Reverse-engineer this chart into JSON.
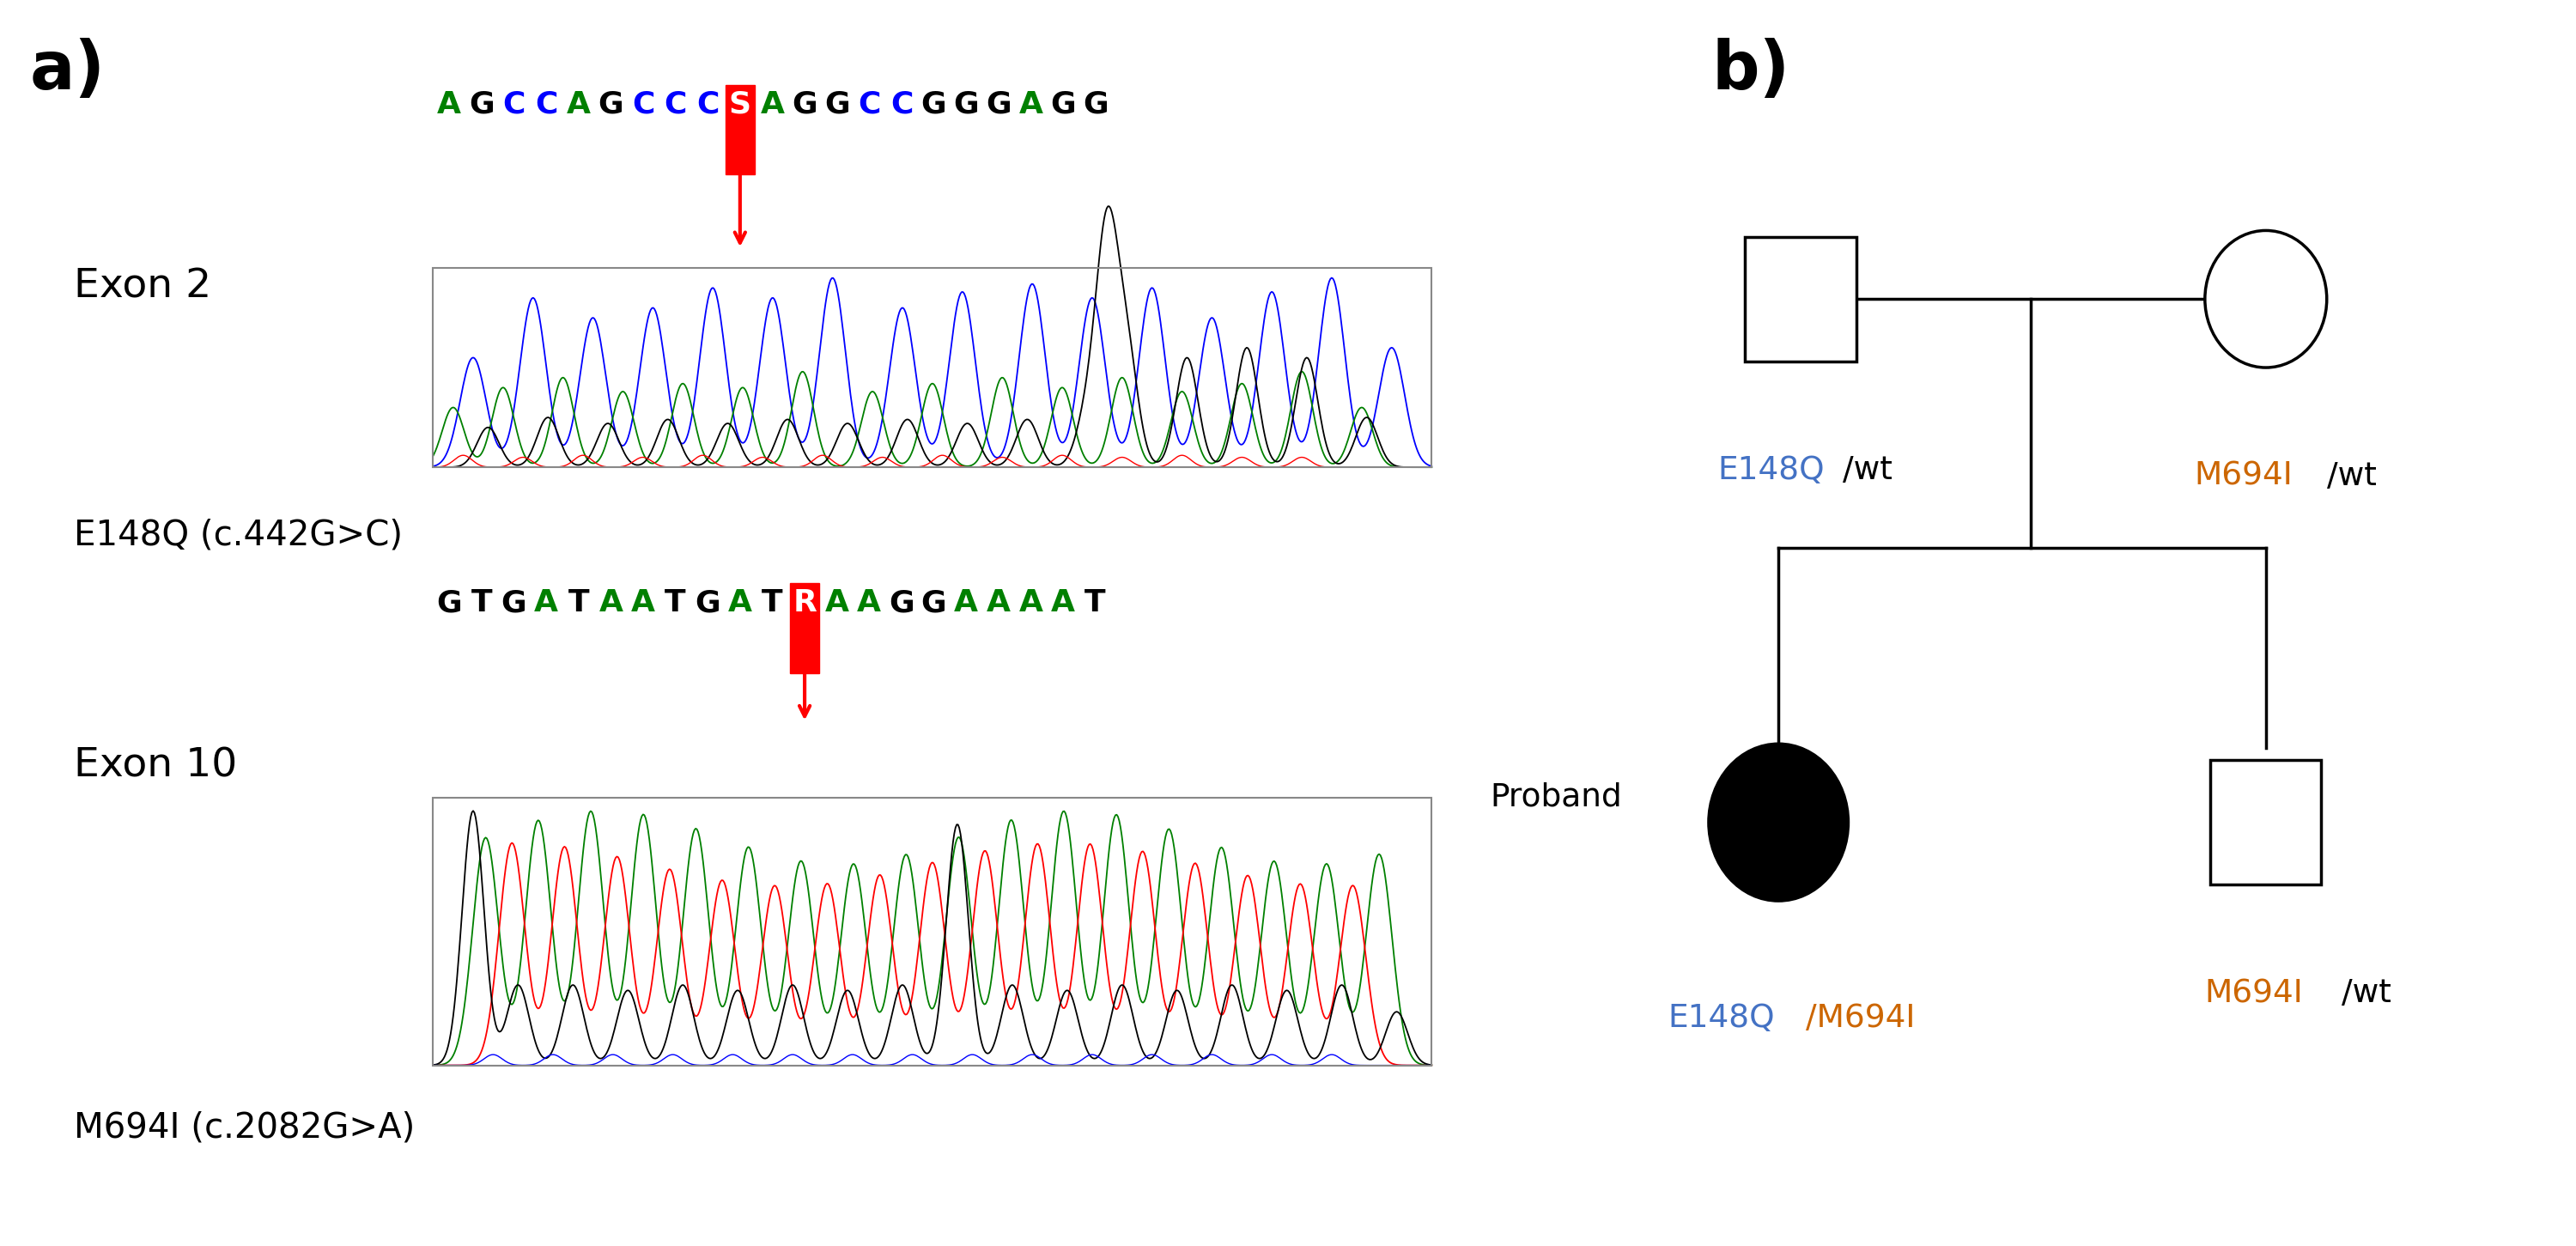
{
  "panel_a_label": "a)",
  "panel_b_label": "b)",
  "exon2_label": "Exon 2",
  "exon10_label": "Exon 10",
  "mutation1_label": "E148Q (c.442G>C)",
  "mutation2_label": "M694I (c.2082G>A)",
  "seq1": {
    "chars": [
      "A",
      "G",
      "C",
      "C",
      "A",
      "G",
      "C",
      "C",
      "C",
      "S",
      "A",
      "G",
      "G",
      "C",
      "C",
      "G",
      "G",
      "G",
      "A",
      "G",
      "G"
    ],
    "colors": [
      "#008000",
      "#000000",
      "#0000FF",
      "#0000FF",
      "#008000",
      "#000000",
      "#0000FF",
      "#0000FF",
      "#0000FF",
      "#FF0000",
      "#008000",
      "#000000",
      "#000000",
      "#0000FF",
      "#0000FF",
      "#000000",
      "#000000",
      "#000000",
      "#008000",
      "#000000",
      "#000000"
    ],
    "highlight_index": 9,
    "highlight_bg": "#FF0000"
  },
  "seq2": {
    "chars": [
      "G",
      "T",
      "G",
      "A",
      "T",
      "A",
      "A",
      "T",
      "G",
      "A",
      "T",
      "R",
      "A",
      "A",
      "G",
      "G",
      "A",
      "A",
      "A",
      "A",
      "T"
    ],
    "colors": [
      "#000000",
      "#000000",
      "#000000",
      "#008000",
      "#000000",
      "#008000",
      "#008000",
      "#000000",
      "#000000",
      "#008000",
      "#000000",
      "#FF0000",
      "#008000",
      "#008000",
      "#000000",
      "#000000",
      "#008000",
      "#008000",
      "#008000",
      "#008000",
      "#000000"
    ],
    "highlight_index": 11,
    "highlight_bg": "#FF0000"
  },
  "pedigree": {
    "father_genotype": "E148Q/wt",
    "father_genotype_parts": [
      "E148Q",
      "/wt"
    ],
    "father_genotype_colors": [
      "#4472C4",
      "#000000"
    ],
    "mother_genotype": "M694I/wt",
    "mother_genotype_parts": [
      "M694I",
      "/wt"
    ],
    "mother_genotype_colors": [
      "#CC6600",
      "#000000"
    ],
    "proband_label": "Proband",
    "proband_genotype_parts": [
      "E148Q",
      "/M694I"
    ],
    "proband_genotype_colors": [
      "#4472C4",
      "#CC6600"
    ],
    "sibling_genotype_parts": [
      "M694I",
      "/wt"
    ],
    "sibling_genotype_colors": [
      "#CC6600",
      "#000000"
    ]
  }
}
